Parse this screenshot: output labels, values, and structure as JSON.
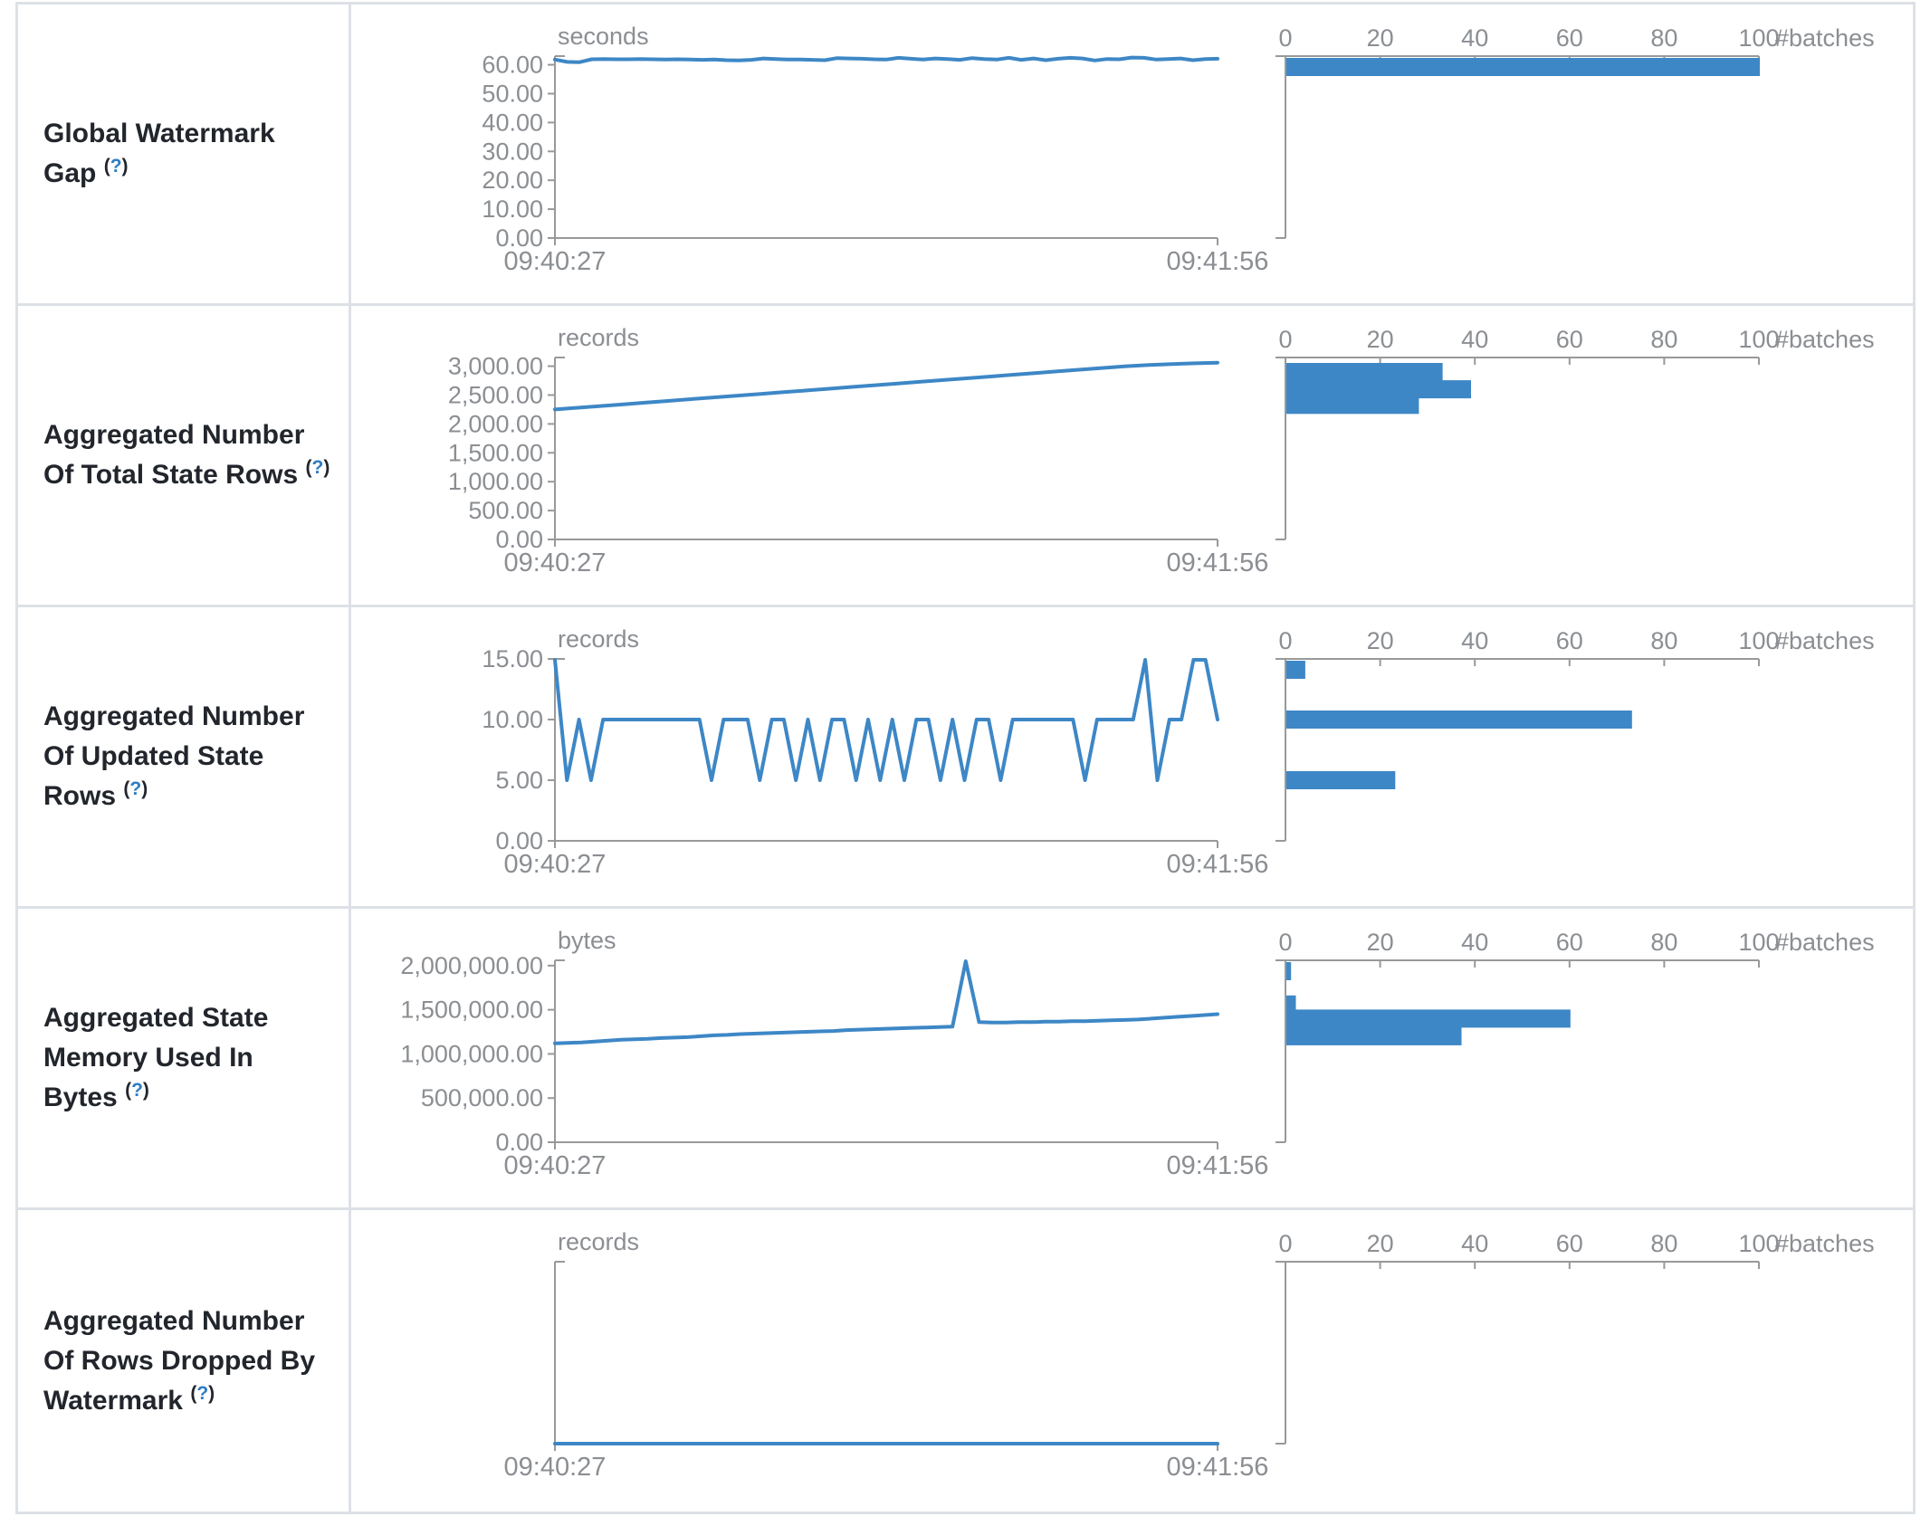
{
  "colors": {
    "accent": "#3d87c6",
    "link": "#2e7cc3",
    "border": "#dde1e6",
    "axis": "#98999b",
    "tick_text": "#8b8e92",
    "title_text": "#22262c"
  },
  "table": {
    "rows": [
      {
        "label": "Global Watermark Gap",
        "help": {
          "open": "(",
          "q": "?",
          "close": ")"
        }
      },
      {
        "label": "Aggregated Number Of Total State Rows",
        "help": {
          "open": "(",
          "q": "?",
          "close": ")"
        }
      },
      {
        "label": "Aggregated Number Of Updated State Rows",
        "help": {
          "open": "(",
          "q": "?",
          "close": ")"
        }
      },
      {
        "label": "Aggregated State Memory Used In Bytes",
        "help": {
          "open": "(",
          "q": "?",
          "close": ")"
        }
      },
      {
        "label": "Aggregated Number Of Rows Dropped By Watermark",
        "help": {
          "open": "(",
          "q": "?",
          "close": ")"
        }
      }
    ]
  },
  "chart_data": [
    {
      "type": "line",
      "metric": "Global Watermark Gap",
      "unit": "seconds",
      "x_ticks": [
        "09:40:27",
        "09:41:56"
      ],
      "ylim": [
        0,
        63
      ],
      "ytick_step": 10,
      "ytick_max": 60,
      "line_series": [
        61.8,
        61.0,
        60.9,
        61.9,
        62.0,
        61.9,
        61.9,
        62.0,
        61.9,
        61.8,
        61.9,
        61.8,
        61.7,
        61.8,
        61.6,
        61.5,
        61.7,
        62.2,
        62.0,
        61.8,
        61.8,
        61.7,
        61.6,
        62.3,
        62.2,
        62.1,
        61.9,
        61.8,
        62.4,
        62.1,
        61.8,
        62.2,
        62.0,
        61.7,
        62.3,
        62.0,
        61.8,
        62.4,
        61.7,
        62.2,
        61.6,
        62.1,
        62.4,
        62.2,
        61.5,
        62.0,
        61.9,
        62.5,
        62.4,
        61.8,
        62.0,
        62.2,
        61.6,
        62.0,
        62.1
      ],
      "histogram": {
        "type": "bar",
        "xlabel": "#batches",
        "xlim": [
          0,
          100
        ],
        "xticks": [
          0,
          20,
          40,
          60,
          80,
          100
        ],
        "bins": [
          {
            "value": 60.5,
            "count": 100
          }
        ]
      }
    },
    {
      "type": "line",
      "metric": "Aggregated Number Of Total State Rows",
      "unit": "records",
      "x_ticks": [
        "09:40:27",
        "09:41:56"
      ],
      "ylim": [
        0,
        3150
      ],
      "ytick_step": 500,
      "ytick_max": 3000,
      "line_series": [
        2250,
        2280,
        2310,
        2340,
        2370,
        2400,
        2430,
        2460,
        2490,
        2520,
        2550,
        2580,
        2610,
        2640,
        2670,
        2700,
        2730,
        2760,
        2790,
        2820,
        2850,
        2880,
        2910,
        2940,
        2970,
        3000,
        3020,
        3035,
        3050,
        3060
      ],
      "histogram": {
        "type": "bar",
        "xlabel": "#batches",
        "xlim": [
          0,
          100
        ],
        "xticks": [
          0,
          20,
          40,
          60,
          80,
          100
        ],
        "bins": [
          {
            "value": 2900,
            "count": 33
          },
          {
            "value": 2600,
            "count": 39
          },
          {
            "value": 2330,
            "count": 28
          }
        ]
      }
    },
    {
      "type": "line",
      "metric": "Aggregated Number Of Updated State Rows",
      "unit": "records",
      "x_ticks": [
        "09:40:27",
        "09:41:56"
      ],
      "ylim": [
        0,
        15
      ],
      "ytick_step": 5,
      "ytick_max": 15,
      "line_series": [
        15,
        5,
        10,
        5,
        10,
        10,
        10,
        10,
        10,
        10,
        10,
        10,
        10,
        5,
        10,
        10,
        10,
        5,
        10,
        10,
        5,
        10,
        5,
        10,
        10,
        5,
        10,
        5,
        10,
        5,
        10,
        10,
        5,
        10,
        5,
        10,
        10,
        5,
        10,
        10,
        10,
        10,
        10,
        10,
        5,
        10,
        10,
        10,
        10,
        15,
        5,
        10,
        10,
        15,
        15,
        10
      ],
      "histogram": {
        "type": "bar",
        "xlabel": "#batches",
        "xlim": [
          0,
          100
        ],
        "xticks": [
          0,
          20,
          40,
          60,
          80,
          100
        ],
        "bins": [
          {
            "value": 15,
            "count": 4
          },
          {
            "value": 10,
            "count": 73
          },
          {
            "value": 5,
            "count": 23
          }
        ]
      }
    },
    {
      "type": "line",
      "metric": "Aggregated State Memory Used In Bytes",
      "unit": "bytes",
      "x_ticks": [
        "09:40:27",
        "09:41:56"
      ],
      "ylim": [
        0,
        2060000
      ],
      "ytick_step": 500000,
      "ytick_max": 2000000,
      "line_series": [
        1120000,
        1125000,
        1130000,
        1140000,
        1150000,
        1160000,
        1165000,
        1170000,
        1180000,
        1185000,
        1190000,
        1200000,
        1210000,
        1215000,
        1225000,
        1230000,
        1235000,
        1240000,
        1245000,
        1250000,
        1255000,
        1260000,
        1270000,
        1275000,
        1280000,
        1285000,
        1290000,
        1295000,
        1300000,
        1305000,
        1310000,
        2050000,
        1360000,
        1355000,
        1355000,
        1360000,
        1360000,
        1365000,
        1365000,
        1370000,
        1370000,
        1375000,
        1380000,
        1385000,
        1390000,
        1400000,
        1410000,
        1420000,
        1430000,
        1440000,
        1450000
      ],
      "histogram": {
        "type": "bar",
        "xlabel": "#batches",
        "xlim": [
          0,
          100
        ],
        "xticks": [
          0,
          20,
          40,
          60,
          80,
          100
        ],
        "bins": [
          {
            "value": 2050000,
            "count": 1
          },
          {
            "value": 1560000,
            "count": 2
          },
          {
            "value": 1400000,
            "count": 60
          },
          {
            "value": 1200000,
            "count": 37
          }
        ]
      }
    },
    {
      "type": "line",
      "metric": "Aggregated Number Of Rows Dropped By Watermark",
      "unit": "records",
      "x_ticks": [
        "09:40:27",
        "09:41:56"
      ],
      "ylim": [
        0,
        1
      ],
      "ytick_step": null,
      "ytick_max": null,
      "line_series": [
        0,
        0,
        0,
        0,
        0,
        0,
        0,
        0,
        0,
        0,
        0,
        0,
        0,
        0,
        0,
        0,
        0,
        0,
        0,
        0
      ],
      "histogram": {
        "type": "bar",
        "xlabel": "#batches",
        "xlim": [
          0,
          100
        ],
        "xticks": [
          0,
          20,
          40,
          60,
          80,
          100
        ],
        "bins": []
      }
    }
  ]
}
